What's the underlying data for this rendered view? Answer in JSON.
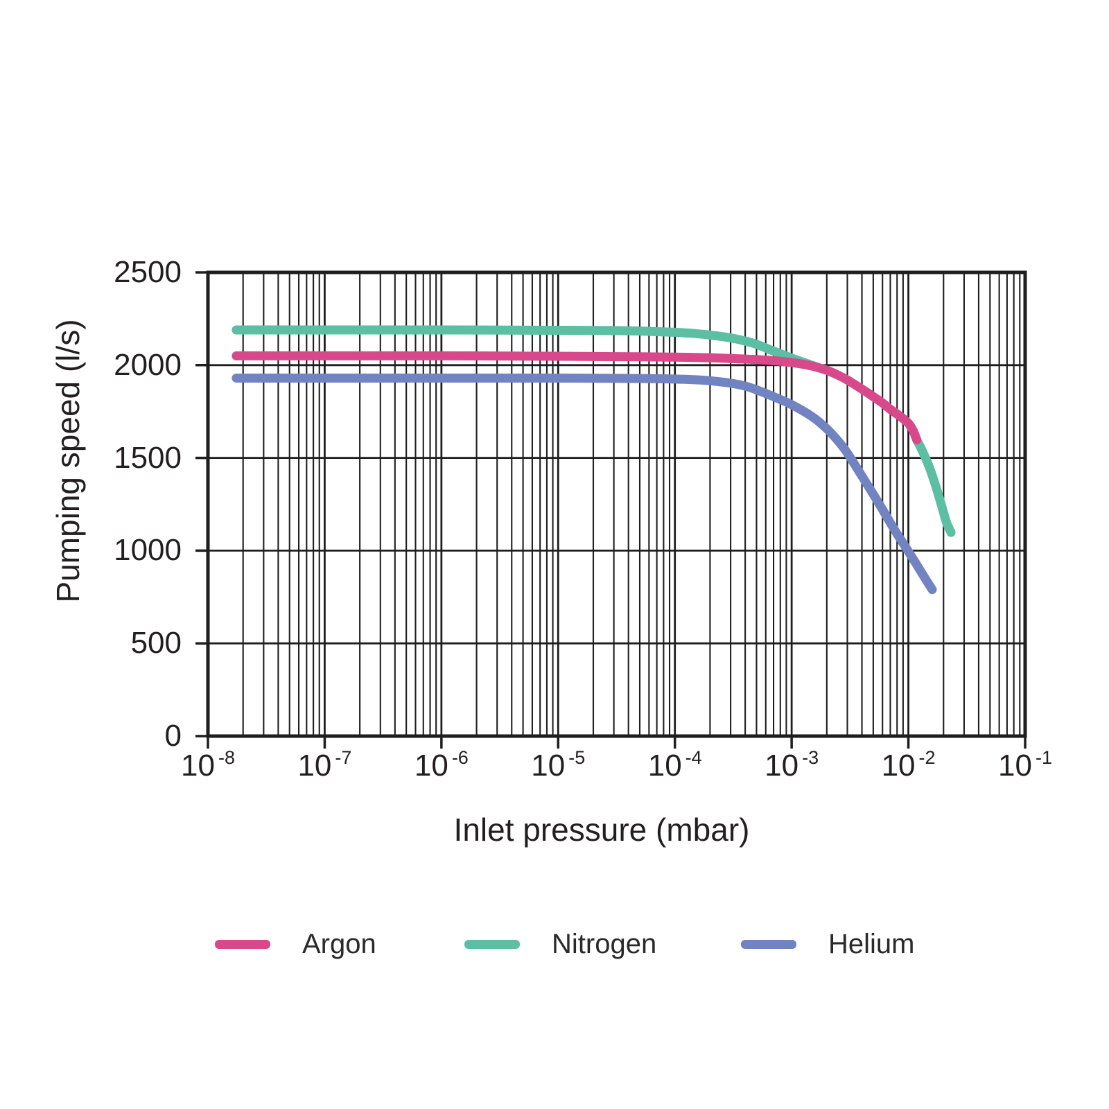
{
  "figure": {
    "background": "#ffffff"
  },
  "chart_data": {
    "type": "line",
    "title": "",
    "xlabel": "Inlet pressure (mbar)",
    "ylabel": "Pumping speed (l/s)",
    "x_scale": "log",
    "xlim": [
      1e-08,
      0.1
    ],
    "ylim": [
      0,
      2500
    ],
    "grid": true,
    "legend_position": "bottom",
    "colors": {
      "grid": "#1e1e1e",
      "frame": "#1e1e1e",
      "text": "#231f20"
    },
    "x_ticks": [
      {
        "base": "10",
        "exp": "-8"
      },
      {
        "base": "10",
        "exp": "-7"
      },
      {
        "base": "10",
        "exp": "-6"
      },
      {
        "base": "10",
        "exp": "-5"
      },
      {
        "base": "10",
        "exp": "-4"
      },
      {
        "base": "10",
        "exp": "-3"
      },
      {
        "base": "10",
        "exp": "-2"
      },
      {
        "base": "10",
        "exp": "-1"
      }
    ],
    "y_ticks": [
      {
        "value": 0,
        "label": "0"
      },
      {
        "value": 500,
        "label": "500"
      },
      {
        "value": 1000,
        "label": "1000"
      },
      {
        "value": 1500,
        "label": "1500"
      },
      {
        "value": 2000,
        "label": "2000"
      },
      {
        "value": 2500,
        "label": "2500"
      }
    ],
    "series": [
      {
        "name": "Argon",
        "color": "#d8498c",
        "points": [
          [
            1.75e-08,
            2050
          ],
          [
            4e-08,
            2050
          ],
          [
            1e-07,
            2050
          ],
          [
            1e-06,
            2050
          ],
          [
            1e-05,
            2048
          ],
          [
            5e-05,
            2045
          ],
          [
            0.0001,
            2043
          ],
          [
            0.0002,
            2040
          ],
          [
            0.0003,
            2036
          ],
          [
            0.0005,
            2030
          ],
          [
            0.0007,
            2024
          ],
          [
            0.001,
            2014
          ],
          [
            0.0015,
            1995
          ],
          [
            0.002,
            1972
          ],
          [
            0.0025,
            1946
          ],
          [
            0.003,
            1920
          ],
          [
            0.004,
            1871
          ],
          [
            0.005,
            1830
          ],
          [
            0.006,
            1796
          ],
          [
            0.007,
            1762
          ],
          [
            0.0085,
            1724
          ],
          [
            0.01,
            1686
          ],
          [
            0.011,
            1646
          ],
          [
            0.0118,
            1597
          ]
        ]
      },
      {
        "name": "Nitrogen",
        "color": "#5cbea2",
        "points": [
          [
            1.75e-08,
            2190
          ],
          [
            4e-08,
            2190
          ],
          [
            1e-07,
            2190
          ],
          [
            1e-06,
            2190
          ],
          [
            1e-05,
            2188
          ],
          [
            3e-05,
            2186
          ],
          [
            6e-05,
            2182
          ],
          [
            0.0001,
            2177
          ],
          [
            0.00015,
            2170
          ],
          [
            0.0002,
            2162
          ],
          [
            0.0003,
            2147
          ],
          [
            0.0004,
            2130
          ],
          [
            0.0005,
            2112
          ],
          [
            0.0007,
            2076
          ],
          [
            0.001,
            2038
          ],
          [
            0.0015,
            1999
          ],
          [
            0.002,
            1972
          ],
          [
            0.0025,
            1946
          ],
          [
            0.003,
            1920
          ],
          [
            0.004,
            1871
          ],
          [
            0.005,
            1830
          ],
          [
            0.006,
            1796
          ],
          [
            0.007,
            1762
          ],
          [
            0.0085,
            1724
          ],
          [
            0.01,
            1686
          ],
          [
            0.011,
            1646
          ],
          [
            0.0118,
            1597
          ],
          [
            0.013,
            1545
          ],
          [
            0.015,
            1455
          ],
          [
            0.017,
            1355
          ],
          [
            0.019,
            1255
          ],
          [
            0.021,
            1160
          ],
          [
            0.0225,
            1115
          ],
          [
            0.0232,
            1098
          ]
        ]
      },
      {
        "name": "Helium",
        "color": "#7183c1",
        "points": [
          [
            1.75e-08,
            1930
          ],
          [
            1e-07,
            1930
          ],
          [
            1e-06,
            1930
          ],
          [
            1e-05,
            1930
          ],
          [
            5e-05,
            1928
          ],
          [
            0.0001,
            1925
          ],
          [
            0.00015,
            1921
          ],
          [
            0.0002,
            1916
          ],
          [
            0.0003,
            1903
          ],
          [
            0.0004,
            1887
          ],
          [
            0.0005,
            1867
          ],
          [
            0.0007,
            1830
          ],
          [
            0.001,
            1787
          ],
          [
            0.0015,
            1722
          ],
          [
            0.002,
            1657
          ],
          [
            0.0025,
            1591
          ],
          [
            0.003,
            1526
          ],
          [
            0.004,
            1402
          ],
          [
            0.005,
            1304
          ],
          [
            0.006,
            1222
          ],
          [
            0.007,
            1150
          ],
          [
            0.008,
            1090
          ],
          [
            0.009,
            1040
          ],
          [
            0.01,
            995
          ],
          [
            0.0115,
            935
          ],
          [
            0.013,
            880
          ],
          [
            0.0145,
            832
          ],
          [
            0.016,
            790
          ]
        ]
      }
    ]
  }
}
